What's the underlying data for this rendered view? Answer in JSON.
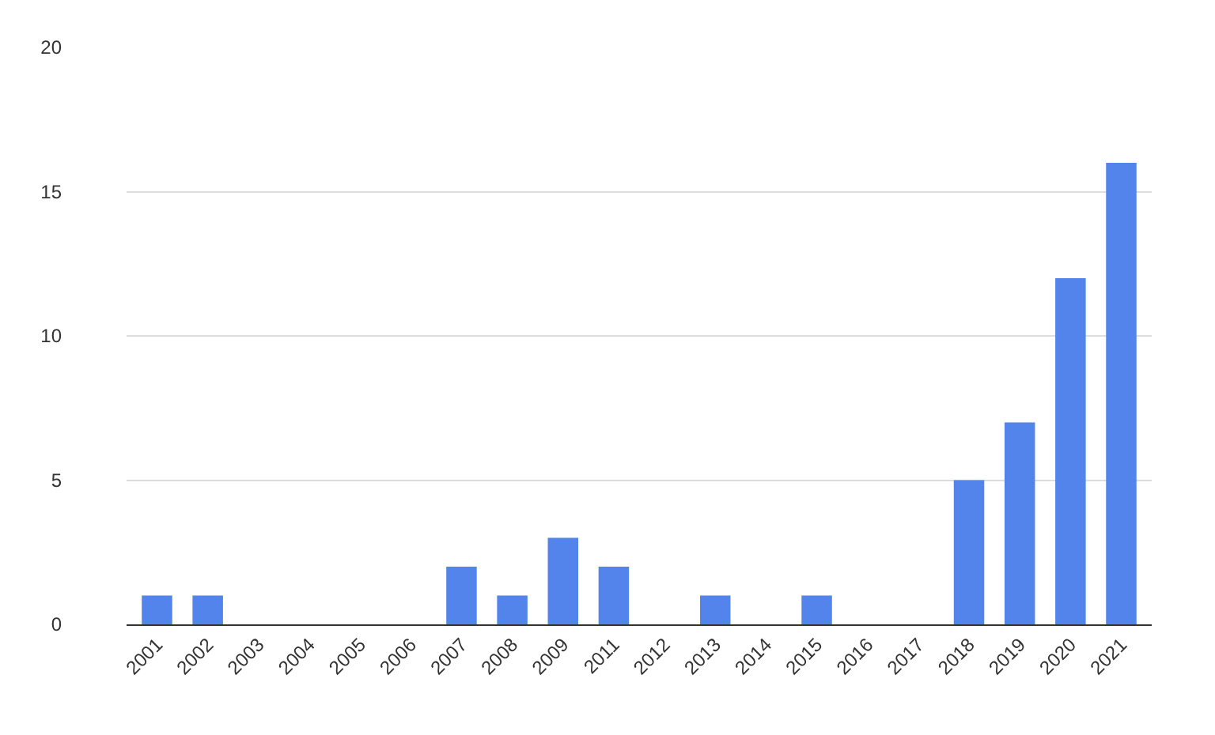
{
  "chart_data": {
    "type": "bar",
    "categories": [
      "2001",
      "2002",
      "2003",
      "2004",
      "2005",
      "2006",
      "2007",
      "2008",
      "2009",
      "2011",
      "2012",
      "2013",
      "2014",
      "2015",
      "2016",
      "2017",
      "2018",
      "2019",
      "2020",
      "2021"
    ],
    "values": [
      1,
      1,
      0,
      0,
      0,
      0,
      2,
      1,
      3,
      2,
      0,
      1,
      0,
      1,
      0,
      0,
      5,
      7,
      12,
      16
    ],
    "color": "#5384ec",
    "ylim": [
      0,
      20
    ],
    "yticks": [
      0,
      5,
      10,
      15,
      20
    ],
    "grid": "y"
  }
}
